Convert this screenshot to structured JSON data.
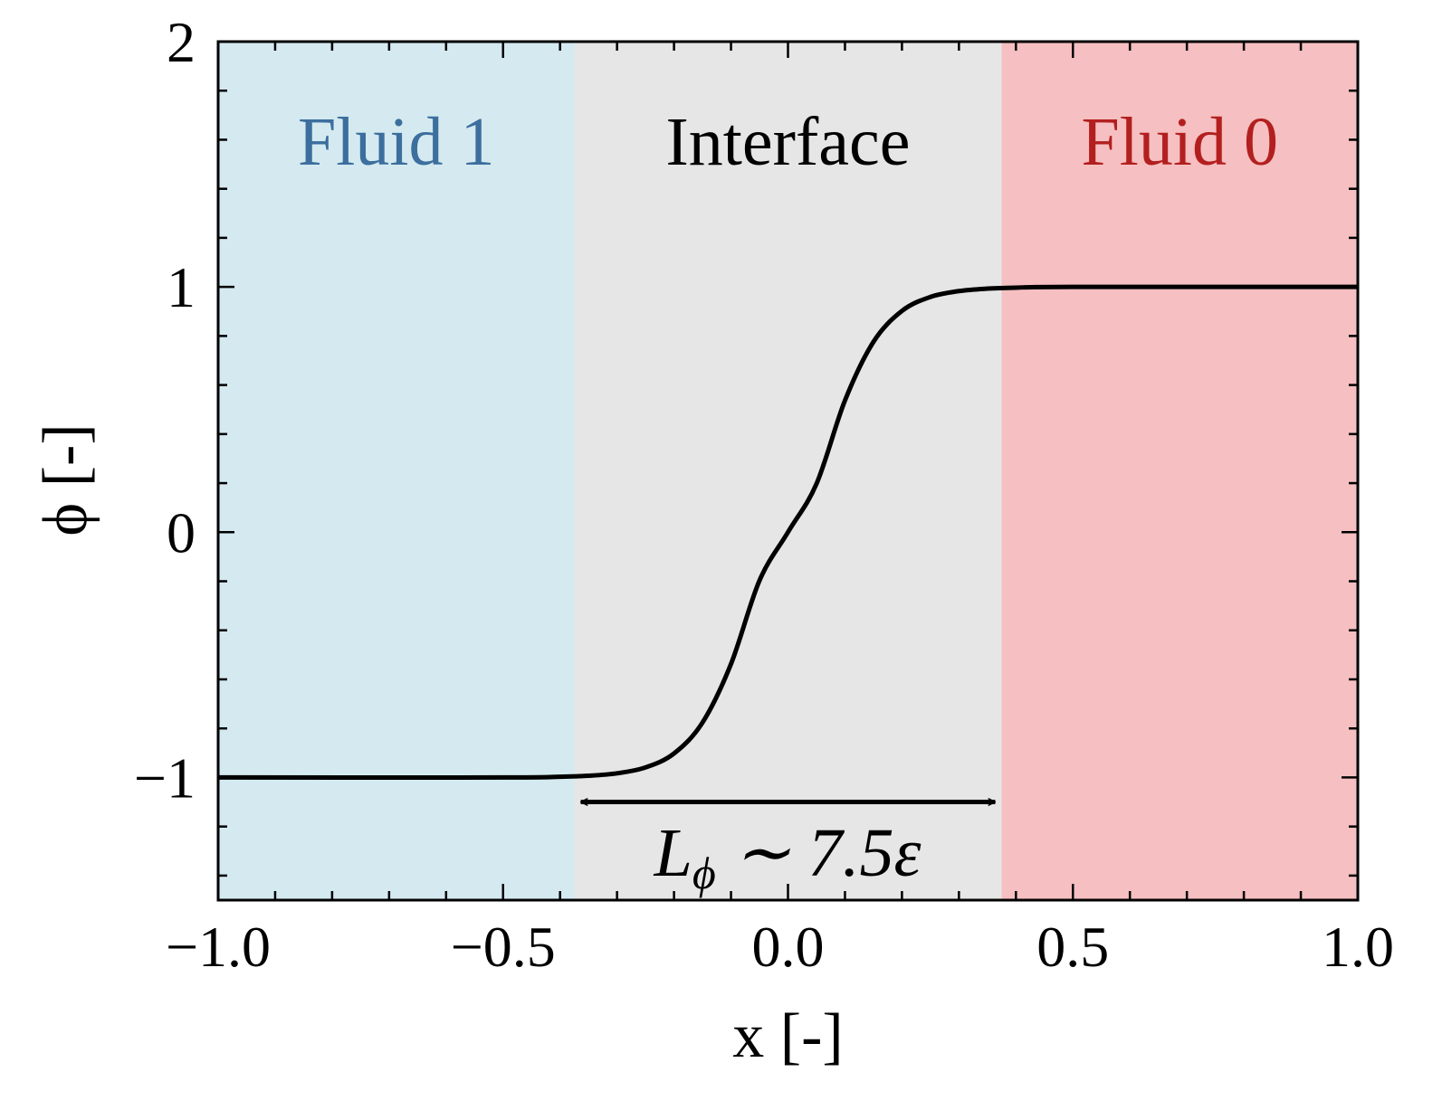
{
  "chart_data": {
    "type": "line",
    "xlabel": "x [-]",
    "ylabel": "ϕ [-]",
    "xlim": [
      -1.0,
      1.0
    ],
    "ylim": [
      -1.5,
      2.0
    ],
    "x_ticks": [
      -1.0,
      -0.5,
      0.0,
      0.5,
      1.0
    ],
    "x_tick_labels": [
      "−1.0",
      "−0.5",
      "0.0",
      "0.5",
      "1.0"
    ],
    "y_ticks": [
      -1,
      0,
      1,
      2
    ],
    "y_tick_labels": [
      "−1",
      "0",
      "1",
      "2"
    ],
    "grid": false,
    "series": [
      {
        "color": "#000000",
        "x": [
          -1.0,
          -0.5,
          -0.4,
          -0.35,
          -0.3,
          -0.25,
          -0.2,
          -0.15,
          -0.1,
          -0.05,
          0.0,
          0.05,
          0.1,
          0.15,
          0.2,
          0.25,
          0.3,
          0.35,
          0.4,
          0.5,
          1.0
        ],
        "y": [
          -1.0,
          -1.0,
          -0.997,
          -0.993,
          -0.983,
          -0.959,
          -0.902,
          -0.776,
          -0.537,
          -0.197,
          0.0,
          0.197,
          0.537,
          0.776,
          0.902,
          0.959,
          0.983,
          0.993,
          0.997,
          1.0,
          1.0
        ]
      }
    ],
    "regions": [
      {
        "label": "Fluid 1",
        "x_range": [
          -1.0,
          -0.375
        ],
        "fill": "#d4eaf0",
        "text_color": "#3c6e9e"
      },
      {
        "label": "Interface",
        "x_range": [
          -0.375,
          0.375
        ],
        "fill": "#e6e6e6",
        "text_color": "#000000"
      },
      {
        "label": "Fluid 0",
        "x_range": [
          0.375,
          1.0
        ],
        "fill": "#f6bfc1",
        "text_color": "#b31f1f"
      }
    ],
    "annotation": {
      "text_main": "L",
      "text_sub": "ϕ",
      "text_rest": " ∼ 7.5ε",
      "arrow_x_range": [
        -0.37,
        0.37
      ],
      "arrow_y": -1.1
    }
  }
}
